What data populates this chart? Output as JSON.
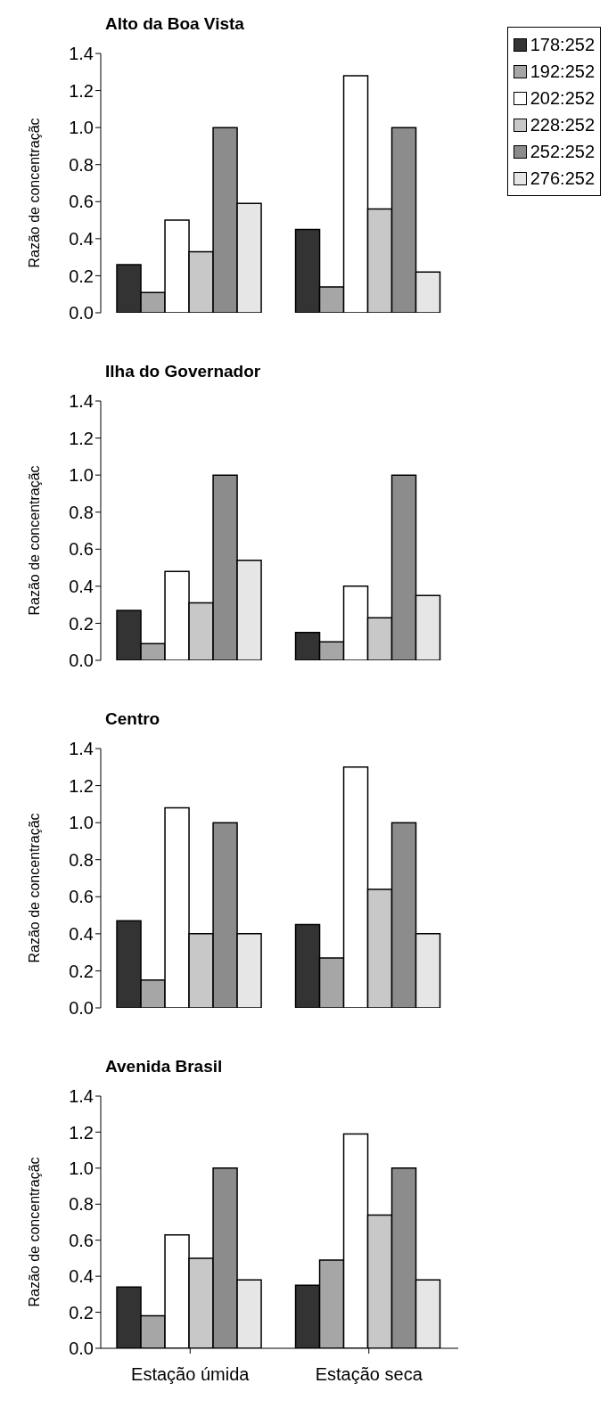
{
  "chart_data": [
    {
      "type": "bar",
      "title": "Alto da Boa Vista",
      "ylabel": "Razão de  concentraçãc",
      "categories": [
        null,
        null
      ],
      "tick_labels": "y",
      "legend": "top right",
      "ylim": [
        0,
        1.4
      ],
      "yticks": [
        {
          "value": 0,
          "label": "0.0"
        },
        {
          "value": 0.2,
          "label": "0.2"
        },
        {
          "value": 0.4,
          "label": "0.4"
        },
        {
          "value": 0.6,
          "label": "0.6"
        },
        {
          "value": 0.8,
          "label": "0.8"
        },
        {
          "value": 1,
          "label": "1.0"
        },
        {
          "value": 1.2,
          "label": "1.2"
        },
        {
          "value": 1.4,
          "label": "1.4"
        }
      ],
      "series": [
        {
          "name": "178:252",
          "color": "#333333",
          "values": [
            0.26,
            0.45
          ]
        },
        {
          "name": "192:252",
          "color": "#a6a6a6",
          "values": [
            0.11,
            0.14
          ]
        },
        {
          "name": "202:252",
          "color": "#ffffff",
          "values": [
            0.5,
            1.28
          ]
        },
        {
          "name": "228:252",
          "color": "#c8c8c8",
          "values": [
            0.33,
            0.56
          ]
        },
        {
          "name": "252:252",
          "color": "#8c8c8c",
          "values": [
            1.0,
            1.0
          ]
        },
        {
          "name": "276:252",
          "color": "#e6e6e6",
          "values": [
            0.59,
            0.22
          ]
        }
      ]
    },
    {
      "type": "bar",
      "title": "Ilha do Governador",
      "ylabel": "Razão de concentraçãc",
      "categories": [
        null,
        null
      ],
      "tick_labels": "y",
      "ylim": [
        0,
        1.4
      ],
      "yticks": [
        {
          "value": 0,
          "label": "0.0"
        },
        {
          "value": 0.2,
          "label": "0.2"
        },
        {
          "value": 0.4,
          "label": "0.4"
        },
        {
          "value": 0.6,
          "label": "0.6"
        },
        {
          "value": 0.8,
          "label": "0.8"
        },
        {
          "value": 1,
          "label": "1.0"
        },
        {
          "value": 1.2,
          "label": "1.2"
        },
        {
          "value": 1.4,
          "label": "1.4"
        }
      ],
      "series": [
        {
          "color": "#333333",
          "values": [
            0.27,
            0.15
          ]
        },
        {
          "color": "#a6a6a6",
          "values": [
            0.09,
            0.1
          ]
        },
        {
          "color": "#ffffff",
          "values": [
            0.48,
            0.4
          ]
        },
        {
          "color": "#c8c8c8",
          "values": [
            0.31,
            0.23
          ]
        },
        {
          "color": "#8c8c8c",
          "values": [
            1.0,
            1.0
          ]
        },
        {
          "color": "#e6e6e6",
          "values": [
            0.54,
            0.35
          ]
        }
      ]
    },
    {
      "type": "bar",
      "title": "Centro",
      "ylabel": "Razão de concentraçãc",
      "categories": [
        null,
        null
      ],
      "tick_labels": "y",
      "ylim": [
        0,
        1.4
      ],
      "yticks": [
        {
          "value": 0,
          "label": "0.0"
        },
        {
          "value": 0.2,
          "label": "0.2"
        },
        {
          "value": 0.4,
          "label": "0.4"
        },
        {
          "value": 0.6,
          "label": "0.6"
        },
        {
          "value": 0.8,
          "label": "0.8"
        },
        {
          "value": 1,
          "label": "1.0"
        },
        {
          "value": 1.2,
          "label": "1.2"
        },
        {
          "value": 1.4,
          "label": "1.4"
        }
      ],
      "series": [
        {
          "color": "#333333",
          "values": [
            0.47,
            0.45
          ]
        },
        {
          "color": "#a6a6a6",
          "values": [
            0.15,
            0.27
          ]
        },
        {
          "color": "#ffffff",
          "values": [
            1.08,
            1.3
          ]
        },
        {
          "color": "#c8c8c8",
          "values": [
            0.4,
            0.64
          ]
        },
        {
          "color": "#8c8c8c",
          "values": [
            1.0,
            1.0
          ]
        },
        {
          "color": "#e6e6e6",
          "values": [
            0.4,
            0.4
          ]
        }
      ]
    },
    {
      "type": "bar",
      "title": "Avenida Brasil",
      "ylabel": "Razão de concentraçãc",
      "categories": [
        "Estação úmida",
        "Estação seca"
      ],
      "ylim": [
        0,
        1.4
      ],
      "yticks": [
        {
          "value": 0,
          "label": "0.0"
        },
        {
          "value": 0.2,
          "label": "0.2"
        },
        {
          "value": 0.4,
          "label": "0.4"
        },
        {
          "value": 0.6,
          "label": "0.6"
        },
        {
          "value": 0.8,
          "label": "0.8"
        },
        {
          "value": 1,
          "label": "1.0"
        },
        {
          "value": 1.2,
          "label": "1.2"
        },
        {
          "value": 1.4,
          "label": "1.4"
        }
      ],
      "series": [
        {
          "color": "#333333",
          "values": [
            0.34,
            0.35
          ]
        },
        {
          "color": "#a6a6a6",
          "values": [
            0.18,
            0.49
          ]
        },
        {
          "color": "#ffffff",
          "values": [
            0.63,
            1.19
          ]
        },
        {
          "color": "#c8c8c8",
          "values": [
            0.5,
            0.74
          ]
        },
        {
          "color": "#8c8c8c",
          "values": [
            1.0,
            1.0
          ]
        },
        {
          "color": "#e6e6e6",
          "values": [
            0.38,
            0.38
          ]
        }
      ]
    }
  ]
}
